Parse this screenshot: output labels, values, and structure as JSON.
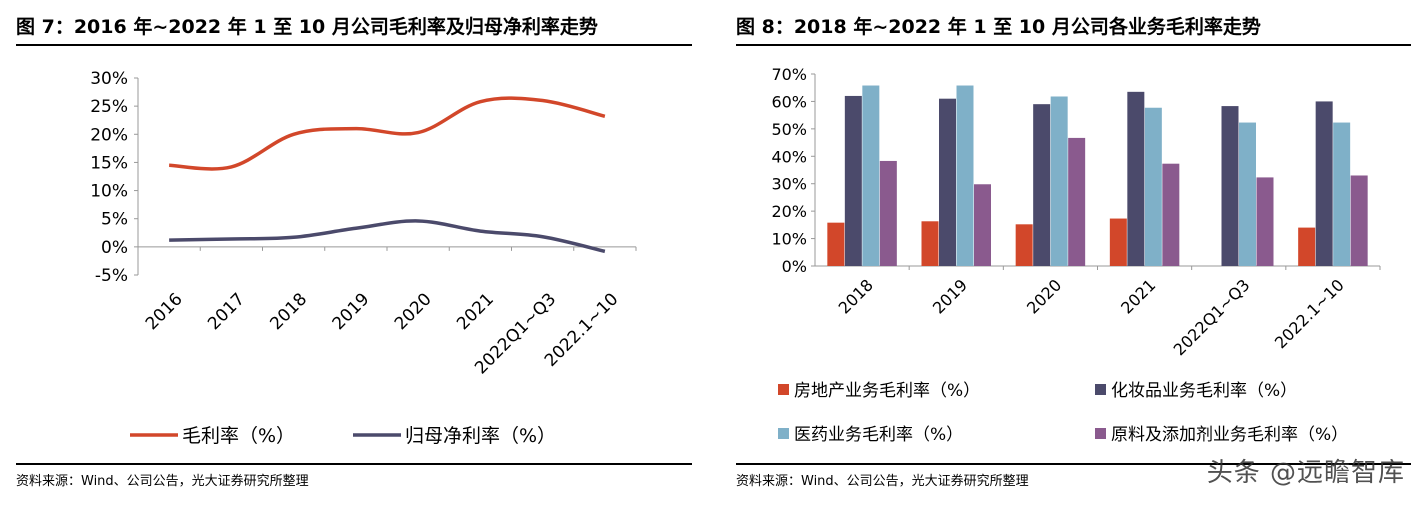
{
  "left": {
    "title": "图 7：2016 年~2022 年 1 至 10 月公司毛利率及归母净利率走势",
    "source": "资料来源：Wind、公司公告，光大证券研究所整理"
  },
  "right": {
    "title": "图 8：2018 年~2022 年 1 至 10 月公司各业务毛利率走势",
    "source": "资料来源：Wind、公司公告，光大证券研究所整理"
  },
  "watermark": "头条 @远瞻智库",
  "colors": {
    "gross": "#d2472a",
    "net": "#4b4a6b",
    "realestate": "#d2472a",
    "cosmetics": "#4b4a6b",
    "medicine": "#7fb0c8",
    "materials": "#8a5a8e"
  },
  "chart_data": [
    {
      "type": "line",
      "title": "图 7：2016 年~2022 年 1 至 10 月公司毛利率及归母净利率走势",
      "categories": [
        "2016",
        "2017",
        "2018",
        "2019",
        "2020",
        "2021",
        "2022Q1~Q3",
        "2022.1~10"
      ],
      "ylim": [
        -5,
        30
      ],
      "yticks": [
        "-5%",
        "0%",
        "5%",
        "10%",
        "15%",
        "20%",
        "25%",
        "30%"
      ],
      "yticks_values": [
        -5,
        0,
        5,
        10,
        15,
        20,
        25,
        30
      ],
      "legend_position": "bottom",
      "series": [
        {
          "name": "毛利率（%）",
          "values": [
            14.5,
            14.2,
            20.0,
            21.0,
            20.3,
            25.8,
            26.0,
            23.2
          ]
        },
        {
          "name": "归母净利率（%）",
          "values": [
            1.2,
            1.4,
            1.7,
            3.3,
            4.6,
            2.8,
            1.8,
            -0.8
          ]
        }
      ]
    },
    {
      "type": "bar",
      "title": "图 8：2018 年~2022 年 1 至 10 月公司各业务毛利率走势",
      "categories": [
        "2018",
        "2019",
        "2020",
        "2021",
        "2022Q1~Q3",
        "2022.1~10"
      ],
      "ylim": [
        0,
        70
      ],
      "yticks": [
        "0%",
        "10%",
        "20%",
        "30%",
        "40%",
        "50%",
        "60%",
        "70%"
      ],
      "yticks_values": [
        0,
        10,
        20,
        30,
        40,
        50,
        60,
        70
      ],
      "legend_position": "bottom",
      "series": [
        {
          "name": "房地产业务毛利率（%）",
          "values": [
            15.8,
            16.3,
            15.2,
            17.3,
            null,
            14.0
          ]
        },
        {
          "name": "化妆品业务毛利率（%）",
          "values": [
            62.0,
            61.0,
            59.0,
            63.5,
            58.3,
            60.0
          ]
        },
        {
          "name": "医药业务毛利率（%）",
          "values": [
            65.8,
            65.8,
            61.8,
            57.7,
            52.3,
            52.3
          ]
        },
        {
          "name": "原料及添加剂业务毛利率（%）",
          "values": [
            38.3,
            29.8,
            46.7,
            37.3,
            32.3,
            33.0
          ]
        }
      ]
    }
  ]
}
